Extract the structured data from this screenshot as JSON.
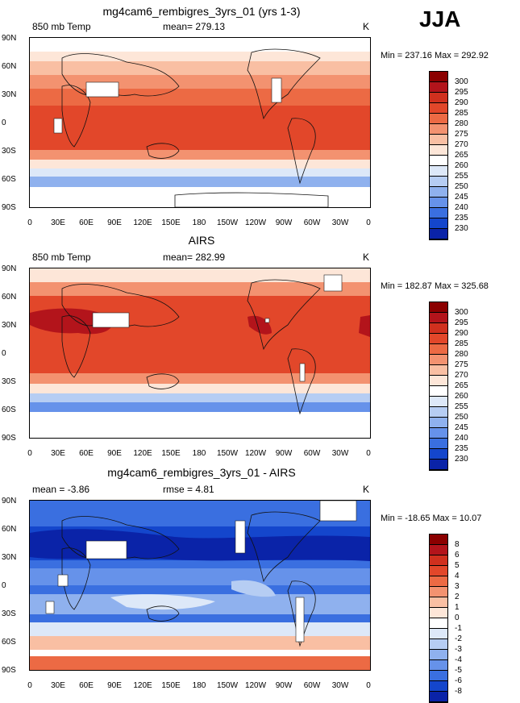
{
  "season": "JJA",
  "panels": [
    {
      "title": "mg4cam6_rembigres_3yrs_01 (yrs 1-3)",
      "left_label": "850 mb Temp",
      "center_label": "mean= 279.13",
      "right_label": "K",
      "minmax": "Min = 237.16 Max = 292.92",
      "colorbar_labels": [
        "300",
        "295",
        "290",
        "285",
        "280",
        "275",
        "270",
        "265",
        "260",
        "255",
        "250",
        "245",
        "240",
        "235",
        "230"
      ],
      "colorbar_colors": [
        "#8b0000",
        "#b3141b",
        "#d0301e",
        "#e2472a",
        "#ec6a44",
        "#f39270",
        "#f9bfa3",
        "#fde6d8",
        "#ffffff",
        "#dde8f8",
        "#b6cdf3",
        "#8fb1ee",
        "#6692ea",
        "#3a6fe0",
        "#1446cc",
        "#0a23a8"
      ]
    },
    {
      "title": "AIRS",
      "left_label": "850 mb Temp",
      "center_label": "mean= 282.99",
      "right_label": "K",
      "minmax": "Min = 182.87 Max = 325.68",
      "colorbar_labels": [
        "300",
        "295",
        "290",
        "285",
        "280",
        "275",
        "270",
        "265",
        "260",
        "255",
        "250",
        "245",
        "240",
        "235",
        "230"
      ],
      "colorbar_colors": [
        "#8b0000",
        "#b3141b",
        "#d0301e",
        "#e2472a",
        "#ec6a44",
        "#f39270",
        "#f9bfa3",
        "#fde6d8",
        "#ffffff",
        "#dde8f8",
        "#b6cdf3",
        "#8fb1ee",
        "#6692ea",
        "#3a6fe0",
        "#1446cc",
        "#0a23a8"
      ]
    },
    {
      "title": "mg4cam6_rembigres_3yrs_01 - AIRS",
      "left_label": "mean =  -3.86",
      "center_label": "rmse =   4.81",
      "right_label": "K",
      "minmax": "Min = -18.65 Max =  10.07",
      "colorbar_labels": [
        "8",
        "6",
        "5",
        "4",
        "3",
        "2",
        "1",
        "0",
        "-1",
        "-2",
        "-3",
        "-4",
        "-5",
        "-6",
        "-8"
      ],
      "colorbar_colors": [
        "#8b0000",
        "#b3141b",
        "#d0301e",
        "#e2472a",
        "#ec6a44",
        "#f39270",
        "#f9bfa3",
        "#fde6d8",
        "#ffffff",
        "#dde8f8",
        "#b6cdf3",
        "#8fb1ee",
        "#6692ea",
        "#3a6fe0",
        "#1446cc",
        "#0a23a8"
      ]
    }
  ],
  "lat_labels": [
    "90N",
    "60N",
    "30N",
    "0",
    "30S",
    "60S",
    "90S"
  ],
  "lon_labels": [
    "0",
    "30E",
    "60E",
    "90E",
    "120E",
    "150E",
    "180",
    "150W",
    "120W",
    "90W",
    "60W",
    "30W",
    "0"
  ]
}
